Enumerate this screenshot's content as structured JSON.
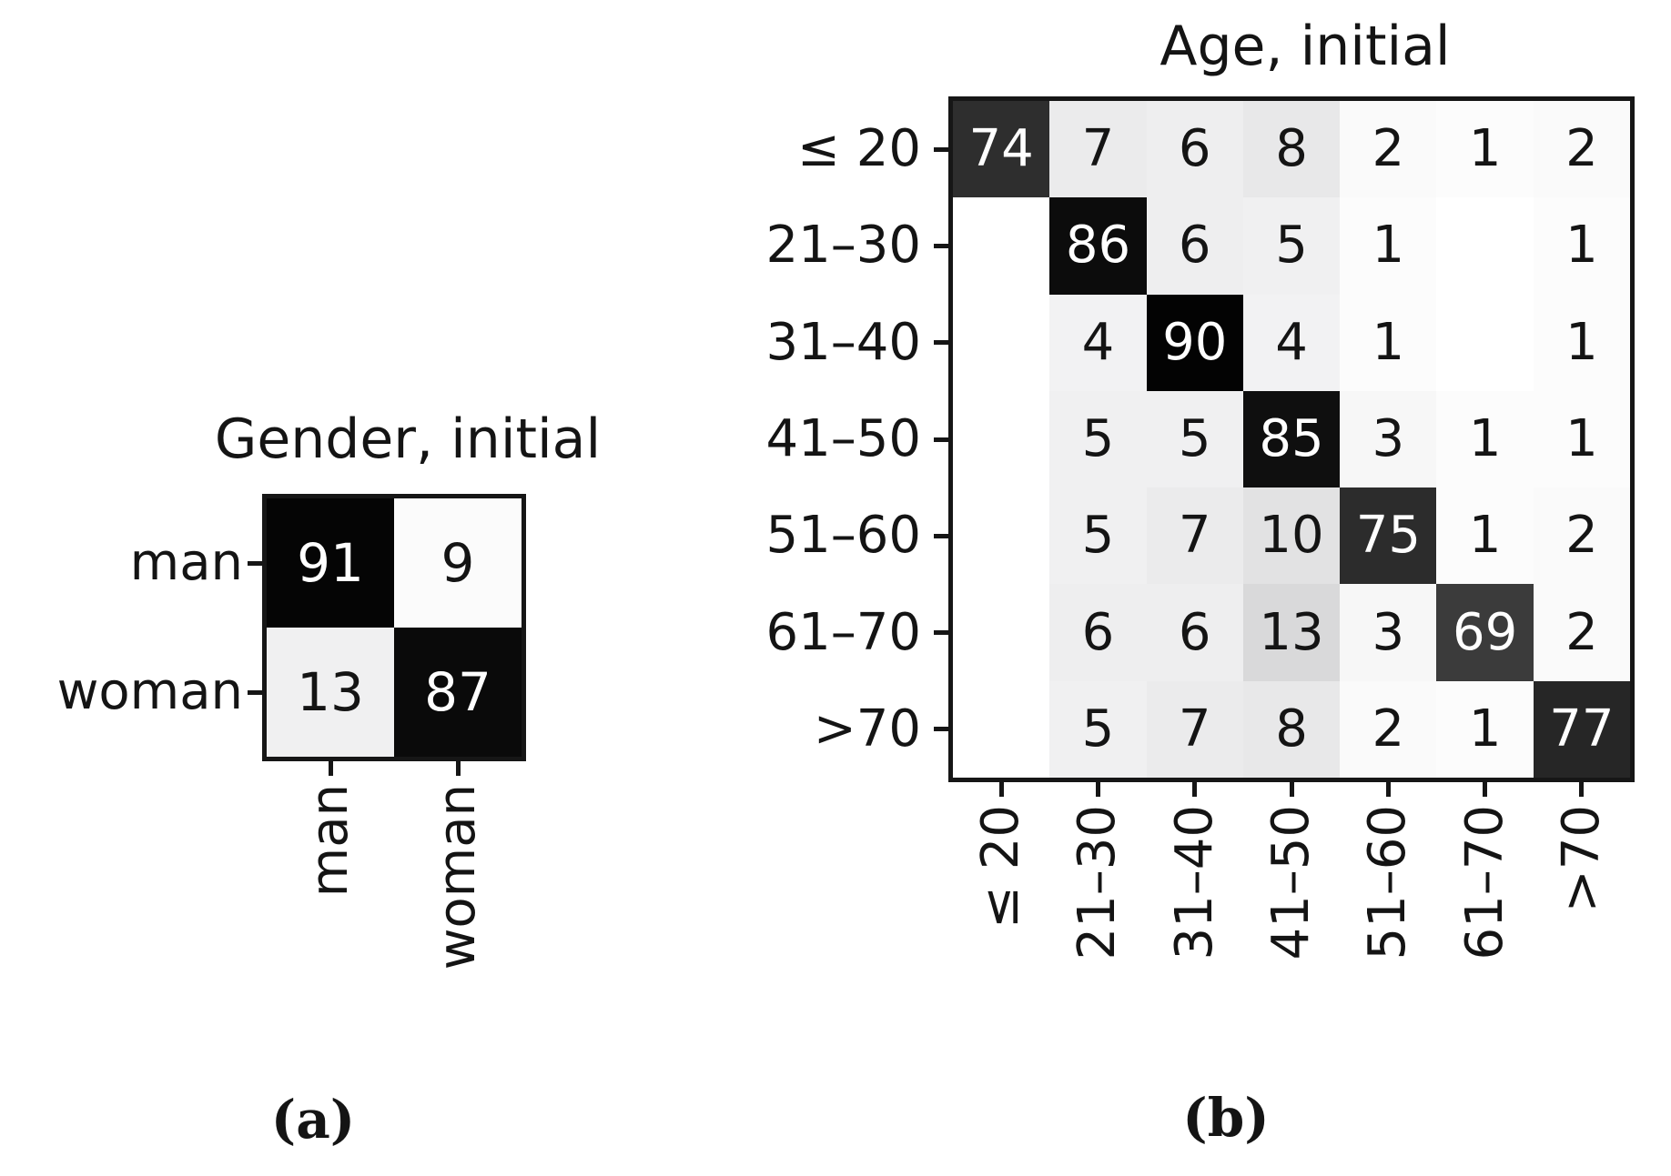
{
  "figure": {
    "background": "#ffffff",
    "text_color": "#141414",
    "spine_color": "#161616",
    "diagonal_text_color": "#ffffff"
  },
  "panels": [
    {
      "id": "gender",
      "title": "Gender, initial",
      "caption": "(a)",
      "row_labels": [
        "man",
        "woman"
      ],
      "col_labels": [
        "man",
        "woman"
      ],
      "cells": [
        [
          {
            "v": "91",
            "bg": "#050505",
            "fg": "#ffffff"
          },
          {
            "v": "9",
            "bg": "#fbfbfb"
          }
        ],
        [
          {
            "v": "13",
            "bg": "#f0f0f1"
          },
          {
            "v": "87",
            "bg": "#0a0a0a",
            "fg": "#ffffff"
          }
        ]
      ]
    },
    {
      "id": "age",
      "title": "Age, initial",
      "caption": "(b)",
      "row_labels": [
        "≤ 20",
        "21–30",
        "31–40",
        "41–50",
        "51–60",
        "61–70",
        ">70"
      ],
      "col_labels": [
        "≤ 20",
        "21–30",
        "31–40",
        "41–50",
        "51–60",
        "61–70",
        ">70"
      ],
      "cells": [
        [
          {
            "v": "74",
            "bg": "#2e2e2e",
            "fg": "#ffffff"
          },
          {
            "v": "7",
            "bg": "#ebebec"
          },
          {
            "v": "6",
            "bg": "#eeeeef"
          },
          {
            "v": "8",
            "bg": "#e8e8e9"
          },
          {
            "v": "2",
            "bg": "#fafafa"
          },
          {
            "v": "1",
            "bg": "#fcfcfc"
          },
          {
            "v": "2",
            "bg": "#fafafa"
          }
        ],
        [
          {
            "v": "",
            "bg": "#ffffff"
          },
          {
            "v": "86",
            "bg": "#0c0c0c",
            "fg": "#ffffff"
          },
          {
            "v": "6",
            "bg": "#eeeeef"
          },
          {
            "v": "5",
            "bg": "#f0f0f1"
          },
          {
            "v": "1",
            "bg": "#fcfcfc"
          },
          {
            "v": "",
            "bg": "#ffffff"
          },
          {
            "v": "1",
            "bg": "#fcfcfc"
          }
        ],
        [
          {
            "v": "",
            "bg": "#ffffff"
          },
          {
            "v": "4",
            "bg": "#f2f2f3"
          },
          {
            "v": "90",
            "bg": "#030303",
            "fg": "#ffffff"
          },
          {
            "v": "4",
            "bg": "#f2f2f3"
          },
          {
            "v": "1",
            "bg": "#fcfcfc"
          },
          {
            "v": "",
            "bg": "#ffffff"
          },
          {
            "v": "1",
            "bg": "#fcfcfc"
          }
        ],
        [
          {
            "v": "",
            "bg": "#ffffff"
          },
          {
            "v": "5",
            "bg": "#f0f0f1"
          },
          {
            "v": "5",
            "bg": "#f0f0f1"
          },
          {
            "v": "85",
            "bg": "#0f0f0f",
            "fg": "#ffffff"
          },
          {
            "v": "3",
            "bg": "#f7f7f7"
          },
          {
            "v": "1",
            "bg": "#fcfcfc"
          },
          {
            "v": "1",
            "bg": "#fcfcfc"
          }
        ],
        [
          {
            "v": "",
            "bg": "#ffffff"
          },
          {
            "v": "5",
            "bg": "#f0f0f1"
          },
          {
            "v": "7",
            "bg": "#ebebec"
          },
          {
            "v": "10",
            "bg": "#e2e2e3"
          },
          {
            "v": "75",
            "bg": "#2c2c2c",
            "fg": "#ffffff"
          },
          {
            "v": "1",
            "bg": "#fcfcfc"
          },
          {
            "v": "2",
            "bg": "#fafafa"
          }
        ],
        [
          {
            "v": "",
            "bg": "#ffffff"
          },
          {
            "v": "6",
            "bg": "#eeeeef"
          },
          {
            "v": "6",
            "bg": "#eeeeef"
          },
          {
            "v": "13",
            "bg": "#d9d9da"
          },
          {
            "v": "3",
            "bg": "#f7f7f7"
          },
          {
            "v": "69",
            "bg": "#3b3b3b",
            "fg": "#ffffff"
          },
          {
            "v": "2",
            "bg": "#fafafa"
          }
        ],
        [
          {
            "v": "",
            "bg": "#ffffff"
          },
          {
            "v": "5",
            "bg": "#f0f0f1"
          },
          {
            "v": "7",
            "bg": "#ebebec"
          },
          {
            "v": "8",
            "bg": "#e8e8e9"
          },
          {
            "v": "2",
            "bg": "#fafafa"
          },
          {
            "v": "1",
            "bg": "#fcfcfc"
          },
          {
            "v": "77",
            "bg": "#262626",
            "fg": "#ffffff"
          }
        ]
      ]
    }
  ],
  "chart_data": [
    {
      "type": "heatmap",
      "title": "Gender, initial",
      "caption": "(a)",
      "rows": [
        "man",
        "woman"
      ],
      "cols": [
        "man",
        "woman"
      ],
      "values": [
        [
          91,
          9
        ],
        [
          13,
          87
        ]
      ],
      "colormap": "Greys (white = 0, black = max)",
      "annotations": "cell values printed in each cell; white text on dark diagonal",
      "legend": "none",
      "note": "confusion-matrix style; rows = true class, cols = predicted class"
    },
    {
      "type": "heatmap",
      "title": "Age, initial",
      "caption": "(b)",
      "rows": [
        "≤ 20",
        "21–30",
        "31–40",
        "41–50",
        "51–60",
        "61–70",
        ">70"
      ],
      "cols": [
        "≤ 20",
        "21–30",
        "31–40",
        "41–50",
        "51–60",
        "61–70",
        ">70"
      ],
      "values": [
        [
          74,
          7,
          6,
          8,
          2,
          1,
          2
        ],
        [
          0,
          86,
          6,
          5,
          1,
          0,
          1
        ],
        [
          0,
          4,
          90,
          4,
          1,
          0,
          1
        ],
        [
          0,
          5,
          5,
          85,
          3,
          1,
          1
        ],
        [
          0,
          5,
          7,
          10,
          75,
          1,
          2
        ],
        [
          0,
          6,
          6,
          13,
          3,
          69,
          2
        ],
        [
          0,
          5,
          7,
          8,
          2,
          1,
          77
        ]
      ],
      "colormap": "Greys (white = 0, black = max)",
      "annotations": "cell values printed; zero cells left blank; white text on dark diagonal",
      "legend": "none",
      "note": "confusion-matrix style; rows = true class, cols = predicted class"
    }
  ]
}
